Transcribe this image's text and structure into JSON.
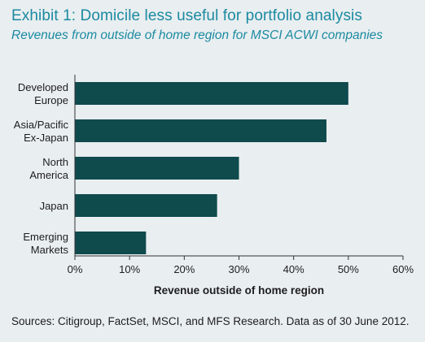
{
  "title": "Exhibit 1: Domicile less useful for portfolio analysis",
  "subtitle": "Revenues from outside of home region for MSCI ACWI companies",
  "source": "Sources: Citigroup, FactSet, MSCI, and MFS Research. Data as of 30 June 2012.",
  "colors": {
    "title": "#1b8aa1",
    "bar": "#0f4a4d",
    "background": "#e9eef0",
    "axis": "#333333"
  },
  "chart_data": {
    "type": "bar",
    "orientation": "horizontal",
    "categories": [
      [
        "Developed",
        "Europe"
      ],
      [
        "Asia/Pacific",
        "Ex-Japan"
      ],
      [
        "North",
        "America"
      ],
      [
        "Japan"
      ],
      [
        "Emerging",
        "Markets"
      ]
    ],
    "values": [
      50,
      46,
      30,
      26,
      13
    ],
    "xlabel": "Revenue outside of home region",
    "ylabel": "",
    "xlim": [
      0,
      60
    ],
    "xticks": [
      0,
      10,
      20,
      30,
      40,
      50,
      60
    ],
    "tick_suffix": "%",
    "grid": false
  }
}
